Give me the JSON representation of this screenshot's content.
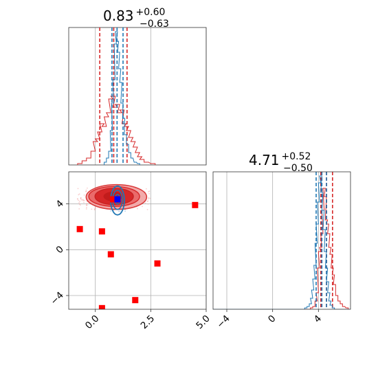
{
  "chart_data": [
    {
      "type": "histogram",
      "panel": "top-left",
      "title": {
        "value": "0.83",
        "plus": "+0.60",
        "minus": "−0.63"
      },
      "xlim": [
        -1.2,
        5.0
      ],
      "grid": true,
      "series": [
        {
          "color": "#d62728",
          "lines": [
            0.2,
            0.83,
            1.43
          ],
          "hist": {
            "x": [
              -0.7,
              -0.5,
              -0.3,
              -0.1,
              0.0,
              0.1,
              0.2,
              0.3,
              0.4,
              0.5,
              0.6,
              0.7,
              0.8,
              0.9,
              1.0,
              1.1,
              1.2,
              1.3,
              1.4,
              1.5,
              1.6,
              1.7,
              1.8,
              1.9,
              2.0,
              2.1,
              2.3,
              2.6
            ],
            "y": [
              0.01,
              0.03,
              0.05,
              0.1,
              0.17,
              0.19,
              0.24,
              0.3,
              0.28,
              0.35,
              0.38,
              0.48,
              0.5,
              0.42,
              0.44,
              0.38,
              0.4,
              0.3,
              0.28,
              0.25,
              0.2,
              0.17,
              0.13,
              0.09,
              0.06,
              0.04,
              0.02,
              0.01
            ]
          }
        },
        {
          "color": "#1f77b4",
          "lines": [
            0.75,
            0.98,
            1.25
          ],
          "hist": {
            "x": [
              0.45,
              0.55,
              0.65,
              0.72,
              0.78,
              0.84,
              0.9,
              0.95,
              1.0,
              1.05,
              1.1,
              1.15,
              1.2,
              1.28,
              1.36,
              1.45,
              1.55,
              1.65,
              1.8,
              1.95
            ],
            "y": [
              0.02,
              0.05,
              0.1,
              0.25,
              0.45,
              0.62,
              0.88,
              0.97,
              0.9,
              0.82,
              0.7,
              0.6,
              0.45,
              0.34,
              0.22,
              0.15,
              0.09,
              0.05,
              0.02,
              0.01
            ]
          }
        }
      ]
    },
    {
      "type": "contour-scatter",
      "panel": "bottom-left",
      "xlim": [
        -1.2,
        5.0
      ],
      "ylim": [
        -5.2,
        6.8
      ],
      "xticks": [
        "0.0",
        "2.5",
        "5.0"
      ],
      "yticks": [
        "−4",
        "0",
        "4"
      ],
      "grid": true,
      "red_square_markers": [
        {
          "x": 4.5,
          "y": 3.9
        },
        {
          "x": 0.8,
          "y": 4.4
        },
        {
          "x": -0.7,
          "y": 1.8
        },
        {
          "x": 0.3,
          "y": 1.6
        },
        {
          "x": 0.7,
          "y": -0.4
        },
        {
          "x": 2.8,
          "y": -1.2
        },
        {
          "x": 1.8,
          "y": -4.4
        },
        {
          "x": 0.3,
          "y": -5.1
        }
      ],
      "blue_square_marker": {
        "x": 1.0,
        "y": 4.4
      }
    },
    {
      "type": "histogram",
      "panel": "bottom-right",
      "title": {
        "value": "4.71",
        "plus": "+0.52",
        "minus": "−0.50"
      },
      "xlim": [
        -5.2,
        6.8
      ],
      "xticks": [
        "−4",
        "0",
        "4"
      ],
      "grid": true,
      "series": [
        {
          "color": "#d62728",
          "lines": [
            4.21,
            4.71,
            5.23
          ],
          "hist": {
            "x": [
              3.4,
              3.6,
              3.8,
              3.9,
              4.0,
              4.1,
              4.2,
              4.3,
              4.4,
              4.5,
              4.6,
              4.7,
              4.8,
              4.9,
              5.0,
              5.1,
              5.2,
              5.3,
              5.4,
              5.6,
              5.8,
              6.0,
              6.2,
              6.5
            ],
            "y": [
              0.01,
              0.02,
              0.06,
              0.12,
              0.3,
              0.42,
              0.45,
              0.55,
              0.72,
              0.88,
              0.82,
              0.65,
              0.62,
              0.55,
              0.45,
              0.4,
              0.3,
              0.25,
              0.18,
              0.1,
              0.06,
              0.04,
              0.02,
              0.01
            ]
          }
        },
        {
          "color": "#1f77b4",
          "lines": [
            3.8,
            4.3,
            4.7
          ],
          "hist": {
            "x": [
              2.9,
              3.1,
              3.3,
              3.4,
              3.5,
              3.6,
              3.7,
              3.8,
              3.9,
              4.0,
              4.1,
              4.2,
              4.3,
              4.4,
              4.5,
              4.6,
              4.7,
              4.8,
              4.9,
              5.0,
              5.1,
              5.3
            ],
            "y": [
              0.01,
              0.02,
              0.04,
              0.08,
              0.14,
              0.22,
              0.32,
              0.48,
              0.62,
              0.78,
              0.92,
              0.97,
              0.85,
              0.72,
              0.58,
              0.42,
              0.3,
              0.2,
              0.12,
              0.06,
              0.03,
              0.01
            ]
          }
        }
      ]
    }
  ]
}
